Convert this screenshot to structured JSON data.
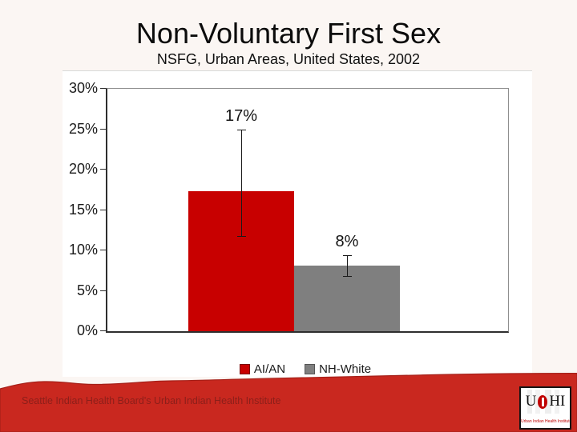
{
  "slide": {
    "footer": "Seattle Indian Health Board's Urban Indian Health Institute",
    "logo": {
      "letter_u": "U",
      "letters_hi": "HI",
      "tagline": "Urban Indian Health Institute"
    }
  },
  "chart_data": {
    "type": "bar",
    "title": "Non-Voluntary First Sex",
    "subtitle": "NSFG, Urban Areas, United States, 2002",
    "categories": [
      "AI/AN",
      "NH-White"
    ],
    "values": [
      17.3,
      8.1
    ],
    "value_labels": [
      "17%",
      "8%"
    ],
    "series_colors": [
      "#c80000",
      "#7f7f7f"
    ],
    "error_bars": [
      {
        "low": 11.8,
        "high": 25.0
      },
      {
        "low": 6.8,
        "high": 9.4
      }
    ],
    "ylim": [
      0,
      30
    ],
    "yticks_top_to_bottom": [
      "30%",
      "25%",
      "20%",
      "15%",
      "10%",
      "5%",
      "0%"
    ],
    "grid": "off",
    "legend_position": "bottom",
    "legend": [
      {
        "label": "AI/AN",
        "color": "#c80000",
        "border": "#7a0000"
      },
      {
        "label": "NH-White",
        "color": "#7f7f7f",
        "border": "#555555"
      }
    ]
  },
  "colors": {
    "slide_background": "#fbf6f3",
    "chart_background": "#ffffff",
    "banner_red": "#c9281f",
    "banner_edge": "#a52019",
    "footer_text_red": "#8c1f1a",
    "bar_red": "#c80000",
    "bar_gray": "#7f7f7f",
    "axis_dark": "#2e2e2e",
    "axis_light": "#8f8f8f"
  }
}
